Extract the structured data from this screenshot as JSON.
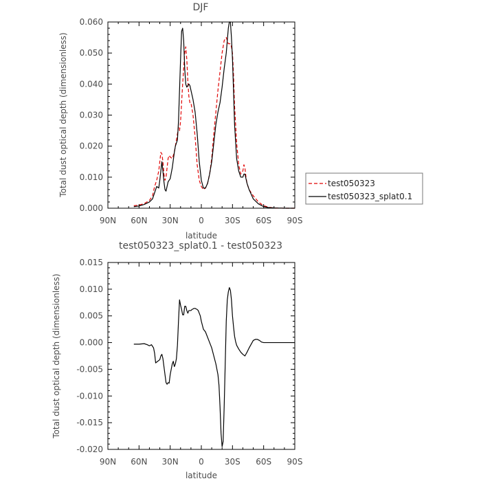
{
  "chart_data": [
    {
      "type": "line",
      "title": "DJF",
      "xlabel": "latitude",
      "ylabel": "Total dust optical depth (dimensionless)",
      "xlim": [
        90,
        -90
      ],
      "ylim": [
        0,
        0.06
      ],
      "x_ticks": [
        90,
        60,
        30,
        0,
        -30,
        -60,
        -90
      ],
      "x_tick_labels": [
        "90N",
        "60N",
        "30N",
        "0",
        "30S",
        "60S",
        "90S"
      ],
      "y_ticks": [
        0,
        0.01,
        0.02,
        0.03,
        0.04,
        0.05,
        0.06
      ],
      "y_tick_labels": [
        "0.000",
        "0.010",
        "0.020",
        "0.030",
        "0.040",
        "0.050",
        "0.060"
      ],
      "legend": {
        "placement": "right",
        "entries": [
          "test050323",
          "test050323_splat0.1"
        ]
      },
      "series": [
        {
          "name": "test050323",
          "color": "#e00000",
          "dash": true,
          "x": [
            65,
            60,
            55,
            50,
            47,
            45,
            43,
            41,
            40,
            39,
            38,
            37,
            36,
            35,
            34,
            33,
            32,
            31,
            30,
            28,
            26,
            25,
            24,
            23,
            22,
            21,
            20,
            19,
            18,
            17,
            16,
            15,
            14,
            13,
            12,
            11,
            10,
            8,
            6,
            4,
            2,
            0,
            -2,
            -4,
            -6,
            -8,
            -10,
            -12,
            -14,
            -16,
            -18,
            -20,
            -22,
            -24,
            -25,
            -26,
            -27,
            -28,
            -29,
            -30,
            -31,
            -32,
            -34,
            -36,
            -38,
            -40,
            -41,
            -42,
            -43,
            -44,
            -46,
            -48,
            -50,
            -55,
            -60,
            -65,
            -70,
            -80,
            -90
          ],
          "y": [
            0.0008,
            0.001,
            0.0015,
            0.0025,
            0.004,
            0.007,
            0.009,
            0.012,
            0.015,
            0.018,
            0.0175,
            0.015,
            0.011,
            0.009,
            0.01,
            0.013,
            0.016,
            0.017,
            0.0165,
            0.016,
            0.018,
            0.02,
            0.022,
            0.024,
            0.026,
            0.025,
            0.028,
            0.034,
            0.04,
            0.045,
            0.05,
            0.052,
            0.048,
            0.041,
            0.036,
            0.034,
            0.034,
            0.03,
            0.023,
            0.014,
            0.009,
            0.007,
            0.006,
            0.0065,
            0.008,
            0.011,
            0.016,
            0.024,
            0.031,
            0.038,
            0.044,
            0.05,
            0.054,
            0.055,
            0.054,
            0.053,
            0.053,
            0.053,
            0.052,
            0.05,
            0.043,
            0.033,
            0.021,
            0.014,
            0.011,
            0.012,
            0.014,
            0.013,
            0.01,
            0.008,
            0.006,
            0.005,
            0.004,
            0.002,
            0.0008,
            0.0003,
            0.0001,
            0,
            0
          ]
        },
        {
          "name": "test050323_splat0.1",
          "color": "#000000",
          "dash": false,
          "x": [
            65,
            60,
            55,
            50,
            47,
            45,
            43,
            41,
            40,
            39,
            38,
            37,
            36,
            35,
            34,
            33,
            32,
            31,
            30,
            28,
            26,
            25,
            24,
            23,
            22,
            21,
            20,
            19,
            18,
            17,
            16,
            15,
            14,
            13,
            12,
            11,
            10,
            8,
            6,
            4,
            2,
            0,
            -2,
            -4,
            -6,
            -8,
            -10,
            -12,
            -14,
            -16,
            -18,
            -20,
            -22,
            -24,
            -25,
            -26,
            -27,
            -28,
            -29,
            -30,
            -31,
            -32,
            -34,
            -36,
            -38,
            -40,
            -41,
            -42,
            -43,
            -44,
            -46,
            -48,
            -50,
            -55,
            -60,
            -65,
            -70,
            -80,
            -90
          ],
          "y": [
            0.0005,
            0.0007,
            0.0012,
            0.002,
            0.003,
            0.005,
            0.007,
            0.0065,
            0.009,
            0.012,
            0.015,
            0.012,
            0.0085,
            0.006,
            0.0055,
            0.007,
            0.0085,
            0.009,
            0.0095,
            0.013,
            0.018,
            0.02,
            0.021,
            0.022,
            0.028,
            0.038,
            0.048,
            0.057,
            0.058,
            0.054,
            0.045,
            0.04,
            0.039,
            0.0395,
            0.04,
            0.0395,
            0.038,
            0.035,
            0.031,
            0.024,
            0.015,
            0.009,
            0.0065,
            0.0065,
            0.008,
            0.011,
            0.015,
            0.021,
            0.027,
            0.031,
            0.034,
            0.039,
            0.045,
            0.05,
            0.054,
            0.058,
            0.06,
            0.06,
            0.055,
            0.048,
            0.038,
            0.027,
            0.016,
            0.012,
            0.01,
            0.01,
            0.011,
            0.011,
            0.0095,
            0.008,
            0.006,
            0.0045,
            0.003,
            0.0014,
            0.0005,
            0.0002,
            0.0001,
            0,
            0
          ]
        }
      ]
    },
    {
      "type": "line",
      "title": "test050323_splat0.1 - test050323",
      "xlabel": "latitude",
      "ylabel": "Total dust optical depth (dimensionless)",
      "xlim": [
        90,
        -90
      ],
      "ylim": [
        -0.02,
        0.015
      ],
      "x_ticks": [
        90,
        60,
        30,
        0,
        -30,
        -60,
        -90
      ],
      "x_tick_labels": [
        "90N",
        "60N",
        "30N",
        "0",
        "30S",
        "60S",
        "90S"
      ],
      "y_ticks": [
        -0.02,
        -0.015,
        -0.01,
        -0.005,
        0,
        0.005,
        0.01,
        0.015
      ],
      "y_tick_labels": [
        "-0.020",
        "-0.015",
        "-0.010",
        "-0.005",
        "0.000",
        "0.005",
        "0.010",
        "0.015"
      ],
      "series": [
        {
          "color": "#000000",
          "dash": false,
          "x": [
            65,
            60,
            55,
            52,
            50,
            48,
            47,
            46,
            45,
            44,
            42,
            40,
            39,
            38,
            37,
            36,
            35,
            34,
            33,
            32,
            31,
            30,
            29,
            28,
            27,
            26,
            25,
            24,
            23,
            22,
            21,
            20,
            19,
            18,
            17,
            16,
            15,
            14,
            13,
            12,
            11,
            10,
            9,
            8,
            7,
            6,
            5,
            4,
            3,
            2,
            1,
            0,
            -2,
            -4,
            -6,
            -8,
            -10,
            -12,
            -14,
            -16,
            -17,
            -18,
            -19,
            -20,
            -21,
            -22,
            -23,
            -24,
            -25,
            -26,
            -27,
            -28,
            -29,
            -30,
            -31,
            -32,
            -33,
            -34,
            -36,
            -38,
            -40,
            -42,
            -44,
            -46,
            -48,
            -50,
            -52,
            -54,
            -56,
            -58,
            -60,
            -62,
            -64,
            -66,
            -70,
            -80,
            -90
          ],
          "y": [
            -0.0003,
            -0.0003,
            -0.0002,
            -0.0004,
            -0.0006,
            -0.0004,
            -0.0007,
            -0.001,
            -0.002,
            -0.0038,
            -0.0035,
            -0.0032,
            -0.0025,
            -0.0022,
            -0.003,
            -0.0045,
            -0.006,
            -0.0075,
            -0.0078,
            -0.0075,
            -0.0076,
            -0.006,
            -0.005,
            -0.004,
            -0.0035,
            -0.0045,
            -0.004,
            -0.003,
            -0.0005,
            0.004,
            0.008,
            0.007,
            0.0062,
            0.0052,
            0.0052,
            0.0068,
            0.0068,
            0.006,
            0.0055,
            0.006,
            0.006,
            0.006,
            0.0062,
            0.0063,
            0.0064,
            0.0064,
            0.0063,
            0.0062,
            0.006,
            0.0055,
            0.005,
            0.004,
            0.0025,
            0.002,
            0.001,
            0,
            -0.001,
            -0.0025,
            -0.004,
            -0.006,
            -0.008,
            -0.012,
            -0.017,
            -0.0195,
            -0.0185,
            -0.012,
            -0.004,
            0.004,
            0.008,
            0.0095,
            0.0103,
            0.0098,
            0.008,
            0.005,
            0.003,
            0.0012,
            0.0002,
            -0.0005,
            -0.0012,
            -0.0018,
            -0.0022,
            -0.0025,
            -0.0018,
            -0.001,
            -0.0003,
            0.0004,
            0.0006,
            0.0006,
            0.0004,
            0.0001,
            0,
            0,
            0,
            0,
            0,
            0,
            0
          ]
        }
      ]
    }
  ]
}
